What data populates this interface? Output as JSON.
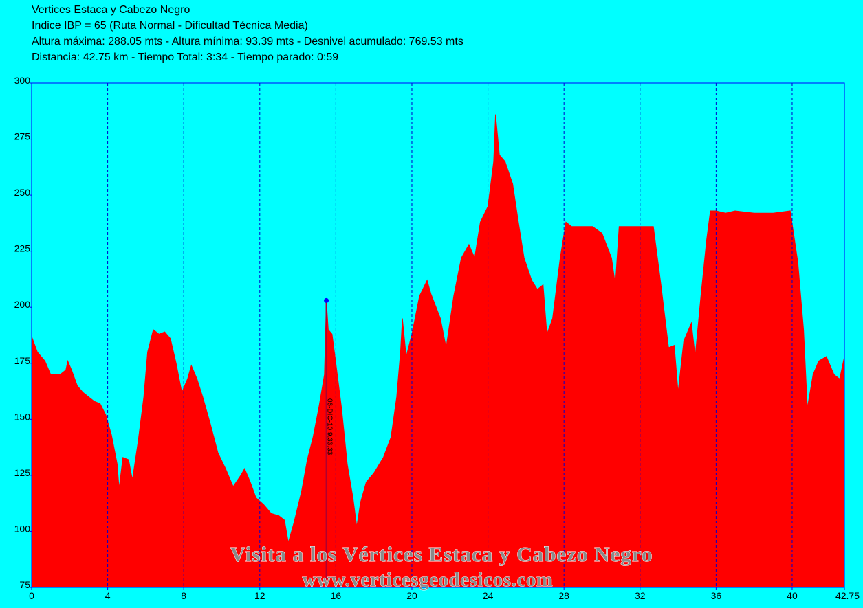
{
  "chart_data": {
    "type": "area",
    "title_lines": [
      "Vertices Estaca y Cabezo Negro",
      "Indice IBP = 65 (Ruta Normal - Dificultad Técnica Media)",
      "Altura máxima: 288.05 mts - Altura mínima: 93.39 mts - Desnivel acumulado: 769.53 mts",
      "Distancia: 42.75 km - Tiempo Total: 3:34 - Tiempo parado:  0:59"
    ],
    "watermark": [
      "Visita a los Vértices Estaca y Cabezo Negro",
      "www.verticesgeodesicos.com"
    ],
    "color": "#ff0000",
    "x": [
      0,
      0.3,
      0.7,
      1,
      1.5,
      1.8,
      1.9,
      2.1,
      2.4,
      2.7,
      3,
      3.3,
      3.6,
      3.9,
      4.2,
      4.5,
      4.6,
      4.8,
      5.1,
      5.3,
      5.6,
      5.9,
      6.1,
      6.4,
      6.7,
      7,
      7.3,
      7.6,
      7.9,
      8.2,
      8.4,
      8.7,
      9,
      9.4,
      9.8,
      10.2,
      10.6,
      11,
      11.2,
      11.5,
      11.8,
      12.2,
      12.6,
      13,
      13.3,
      13.5,
      13.8,
      14.2,
      14.5,
      14.8,
      15.1,
      15.4,
      15.5,
      15.6,
      15.8,
      16,
      16.3,
      16.6,
      16.9,
      17.1,
      17.3,
      17.6,
      18,
      18.5,
      18.9,
      19.2,
      19.4,
      19.5,
      19.7,
      20,
      20.4,
      20.8,
      21,
      21.5,
      21.8,
      22.2,
      22.6,
      23,
      23.3,
      23.6,
      24,
      24.3,
      24.4,
      24.6,
      24.9,
      25.3,
      25.6,
      25.9,
      26.3,
      26.6,
      26.9,
      27.1,
      27.4,
      27.8,
      28.1,
      28.4,
      28.8,
      29.5,
      30,
      30.5,
      30.7,
      30.9,
      31.5,
      32,
      32.7,
      33.1,
      33.5,
      33.8,
      34,
      34.3,
      34.7,
      34.9,
      35.2,
      35.5,
      35.7,
      36,
      36.5,
      37,
      38,
      39,
      39.9,
      40.3,
      40.6,
      40.8,
      41.1,
      41.4,
      41.8,
      42.2,
      42.5,
      42.75
    ],
    "values": [
      187,
      180,
      176,
      170,
      170,
      172,
      176,
      172,
      165,
      162,
      160,
      158,
      157,
      152,
      143,
      130,
      119,
      133,
      132,
      123,
      140,
      160,
      180,
      190,
      188,
      189,
      186,
      175,
      162,
      168,
      174,
      168,
      160,
      148,
      135,
      128,
      120,
      125,
      128,
      122,
      115,
      112,
      108,
      107,
      105,
      95,
      104,
      118,
      132,
      142,
      155,
      170,
      203,
      190,
      188,
      175,
      155,
      130,
      115,
      102,
      113,
      122,
      126,
      133,
      142,
      160,
      180,
      195,
      178,
      188,
      205,
      212,
      206,
      195,
      182,
      205,
      222,
      228,
      222,
      238,
      245,
      265,
      286,
      268,
      265,
      255,
      238,
      222,
      212,
      208,
      210,
      188,
      195,
      222,
      238,
      236,
      236,
      236,
      233,
      222,
      210,
      236,
      236,
      236,
      236,
      210,
      182,
      183,
      162,
      185,
      193,
      178,
      205,
      230,
      243,
      243,
      242,
      243,
      242,
      242,
      243,
      220,
      190,
      155,
      170,
      176,
      178,
      170,
      168,
      178
    ],
    "marker": {
      "x": 15.5,
      "y": 203,
      "label": "06-DIC-10 9:33:33"
    },
    "xlim": [
      0,
      42.75
    ],
    "xticks": [
      0,
      4,
      8,
      12,
      16,
      20,
      24,
      28,
      32,
      36,
      40,
      42.75
    ],
    "ylim": [
      75,
      300
    ],
    "yticks": [
      75,
      100,
      125,
      150,
      175,
      200,
      225,
      250,
      275,
      300
    ],
    "grid": true
  }
}
